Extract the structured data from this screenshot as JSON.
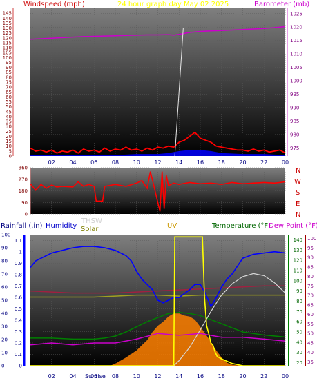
{
  "header": {
    "left_label": "Windspeed (mph)",
    "center_label": "24 hour graph day   May 02 2025",
    "right_label": "Barometer (mb)"
  },
  "direction_labels": [
    "N",
    "W",
    "S",
    "E",
    "N"
  ],
  "bottom_header": {
    "rainfall": "Rainfall (.in)",
    "humidity": "Humidity",
    "thsw": "THSW",
    "solar": "Solar",
    "uv": "UV",
    "temperature": "Temperature (°F)",
    "dewpoint": "Dew Point (°F)"
  },
  "x_ticks": [
    "02",
    "04",
    "06",
    "08",
    "10",
    "12",
    "14",
    "16",
    "18",
    "20",
    "22",
    "00"
  ],
  "sunrise_label": "Sunrise",
  "colors": {
    "wind": "#ff0000",
    "gust": "#0000ff",
    "barometer": "#cc00cc",
    "humidity": "#0000ff",
    "temperature": "#008000",
    "dewpoint": "#cc00cc",
    "uv": "#ffff00",
    "solar": "#ff8000",
    "thsw": "#ffffff",
    "rain_axis": "#0000ff",
    "plot_bg_top": "#7a7a7a",
    "plot_bg_bottom": "#000000"
  },
  "chart_data": [
    {
      "type": "line",
      "name": "wind-barometer",
      "left_axis_label": "Windspeed (mph)",
      "right_axis_label": "Barometer (mb)",
      "left_ticks": [
        "0",
        "5",
        "10",
        "15",
        "20",
        "25",
        "30",
        "35",
        "40",
        "45",
        "50",
        "55",
        "60",
        "65",
        "70",
        "75",
        "80",
        "85",
        "90",
        "95",
        "100",
        "105",
        "110",
        "115",
        "120",
        "125",
        "130",
        "135",
        "140",
        "145"
      ],
      "left_ylim": [
        0,
        150
      ],
      "right_ticks": [
        "975",
        "980",
        "985",
        "990",
        "995",
        "1000",
        "1005",
        "1010",
        "1015",
        "1020",
        "1025"
      ],
      "right_ylim": [
        972,
        1027
      ],
      "xlim": [
        0,
        24
      ],
      "series": [
        {
          "name": "Barometer",
          "axis": "right",
          "x": [
            0,
            1,
            2,
            3,
            4,
            5,
            6,
            7,
            8,
            9,
            10,
            11,
            12,
            13,
            13.5,
            14,
            15,
            16,
            17,
            18,
            19,
            20,
            21,
            22,
            23,
            24
          ],
          "values": [
            1015.5,
            1015.7,
            1015.9,
            1016.1,
            1016.3,
            1016.5,
            1016.6,
            1016.7,
            1016.8,
            1016.9,
            1017.0,
            1017.1,
            1017.1,
            1017.2,
            1017.0,
            1017.3,
            1018.0,
            1018.4,
            1018.6,
            1018.7,
            1018.9,
            1019.1,
            1019.3,
            1019.5,
            1019.8,
            1020.2
          ]
        },
        {
          "name": "Wind speed",
          "axis": "left",
          "x": [
            0,
            0.5,
            1,
            1.5,
            2,
            2.5,
            3,
            3.5,
            4,
            4.5,
            5,
            5.5,
            6,
            6.5,
            7,
            7.5,
            8,
            8.5,
            9,
            9.5,
            10,
            10.5,
            11,
            11.5,
            12,
            12.5,
            13,
            13.5,
            14,
            14.5,
            15,
            15.5,
            16,
            16.5,
            17,
            17.5,
            18,
            18.5,
            19,
            19.5,
            20,
            20.5,
            21,
            21.5,
            22,
            22.5,
            23,
            23.5,
            24
          ],
          "values": [
            8,
            5,
            6,
            4,
            6,
            3,
            5,
            4,
            6,
            3,
            7,
            5,
            6,
            4,
            8,
            5,
            7,
            6,
            9,
            6,
            7,
            5,
            8,
            6,
            9,
            8,
            10,
            9,
            14,
            16,
            20,
            24,
            18,
            16,
            14,
            10,
            9,
            8,
            7,
            6,
            6,
            5,
            7,
            5,
            6,
            4,
            5,
            6,
            3
          ]
        },
        {
          "name": "Gust",
          "axis": "left",
          "x": [
            0,
            2,
            4,
            6,
            8,
            10,
            12,
            13,
            14,
            15,
            16,
            17,
            18,
            20,
            22,
            24
          ],
          "values": [
            1,
            1,
            1,
            1,
            1,
            2,
            2,
            3,
            5,
            6,
            6,
            5,
            3,
            2,
            2,
            1
          ]
        }
      ]
    },
    {
      "type": "line",
      "name": "wind-direction",
      "axis_labels": [
        "N",
        "W",
        "S",
        "E",
        "N"
      ],
      "ticks": [
        "0",
        "90",
        "180",
        "270",
        "360"
      ],
      "ylim": [
        0,
        360
      ],
      "xlim": [
        0,
        24
      ],
      "series": [
        {
          "name": "Wind direction",
          "x": [
            0,
            0.5,
            1,
            1.5,
            2,
            2.5,
            3,
            4,
            4.5,
            5,
            5.5,
            6,
            6.2,
            6.8,
            7,
            8,
            9,
            10,
            10.5,
            11,
            11.3,
            11.6,
            12,
            12.2,
            12.4,
            12.6,
            12.8,
            13,
            13.5,
            14,
            15,
            16,
            17,
            18,
            19,
            20,
            21,
            22,
            23,
            24
          ],
          "values": [
            235,
            185,
            230,
            200,
            225,
            210,
            215,
            210,
            250,
            215,
            230,
            215,
            100,
            100,
            215,
            230,
            215,
            240,
            260,
            200,
            330,
            230,
            90,
            20,
            330,
            40,
            300,
            220,
            240,
            230,
            245,
            235,
            240,
            230,
            245,
            235,
            240,
            245,
            240,
            250
          ]
        }
      ]
    },
    {
      "type": "line",
      "name": "rain-humidity-temperature",
      "left_axis_label": "Rainfall (.in)",
      "left_ticks": [
        "0",
        "0.1",
        "0.2",
        "0.3",
        "0.4",
        "0.5",
        "0.6",
        "0.7",
        "0.8",
        "0.9",
        "1",
        "1.1"
      ],
      "left_ylim": [
        0,
        1.15
      ],
      "humidity_ticks": [
        "0",
        "10",
        "20",
        "30",
        "40",
        "50",
        "60",
        "70",
        "80",
        "90",
        "100"
      ],
      "humidity_ylim": [
        0,
        100
      ],
      "temperature_ticks": [
        "20",
        "30",
        "40",
        "50",
        "60",
        "70",
        "80",
        "90",
        "100",
        "110",
        "120",
        "130",
        "140"
      ],
      "temperature_ylim": [
        17,
        145
      ],
      "dewpoint_ticks": [
        "35",
        "40",
        "45",
        "50",
        "55",
        "60",
        "65",
        "70",
        "75",
        "80",
        "85",
        "90",
        "95",
        "100"
      ],
      "dewpoint_ylim": [
        33,
        102
      ],
      "xlim": [
        0,
        24
      ],
      "series": [
        {
          "name": "Humidity",
          "axis": "humidity",
          "x": [
            0,
            0.5,
            1,
            2,
            3,
            4,
            5,
            6,
            7,
            8,
            9,
            9.5,
            10,
            10.5,
            11,
            11.5,
            12,
            12.5,
            13,
            13.5,
            14,
            14.5,
            15,
            15.5,
            16,
            16.5,
            17,
            17.5,
            18,
            18.5,
            19,
            20,
            21,
            22,
            23,
            24
          ],
          "values": [
            75,
            80,
            82,
            86,
            88,
            90,
            91,
            91,
            90,
            88,
            84,
            80,
            72,
            66,
            62,
            58,
            50,
            48,
            50,
            52,
            52,
            55,
            58,
            62,
            62,
            55,
            45,
            52,
            60,
            66,
            70,
            82,
            85,
            86,
            87,
            86
          ]
        },
        {
          "name": "UV",
          "axis": "rain",
          "x": [
            0,
            13.5,
            13.6,
            16.2,
            16.4,
            16.6,
            16.8,
            17,
            17.2,
            17.4,
            17.6,
            18,
            18.5,
            19,
            20,
            24
          ],
          "values": [
            0,
            0,
            1.13,
            1.13,
            0.6,
            0.35,
            0.28,
            0.2,
            0.18,
            0.12,
            0.08,
            0.06,
            0.04,
            0.02,
            0,
            0
          ]
        },
        {
          "name": "Solar",
          "axis": "temperature",
          "x": [
            0,
            7.5,
            8,
            9,
            10,
            10.5,
            11,
            11.5,
            12,
            12.5,
            13,
            13.5,
            14,
            14.5,
            15,
            15.5,
            16,
            16.5,
            17,
            17.5,
            18,
            18.5,
            19,
            20,
            24
          ],
          "values": [
            17,
            17,
            19,
            25,
            32,
            37,
            42,
            50,
            56,
            60,
            65,
            68,
            68,
            66,
            65,
            62,
            55,
            48,
            40,
            32,
            25,
            20,
            18,
            17,
            17
          ]
        },
        {
          "name": "THSW",
          "axis": "temperature",
          "x": [
            0,
            13.5,
            14,
            15,
            16,
            17,
            18,
            19,
            20,
            21,
            22,
            23,
            24
          ],
          "values": [
            17,
            17,
            22,
            35,
            52,
            70,
            86,
            97,
            104,
            107,
            105,
            98,
            88
          ]
        },
        {
          "name": "Temperature",
          "axis": "temperature",
          "x": [
            0,
            2,
            4,
            6,
            7,
            8,
            9,
            10,
            11,
            12,
            13,
            14,
            15,
            16,
            17,
            18,
            19,
            20,
            22,
            24
          ],
          "values": [
            44,
            44,
            43,
            43,
            44,
            46,
            50,
            55,
            60,
            64,
            68,
            69,
            68,
            66,
            62,
            58,
            54,
            50,
            47,
            45
          ]
        },
        {
          "name": "Dew Point",
          "axis": "dewpoint",
          "x": [
            0,
            2,
            4,
            6,
            8,
            10,
            12,
            14,
            16,
            18,
            20,
            22,
            24
          ],
          "values": [
            44,
            45,
            44,
            45,
            45,
            47,
            50,
            49,
            50,
            48,
            48,
            47,
            46
          ]
        },
        {
          "name": "Top band",
          "axis": "temperature",
          "x": [
            0,
            2,
            4,
            6,
            8,
            10,
            12,
            14,
            16,
            18,
            20,
            22,
            24
          ],
          "values": [
            90,
            89,
            88,
            88,
            88,
            89,
            90,
            91,
            92,
            93,
            94,
            95,
            95
          ]
        },
        {
          "name": "Mid band",
          "axis": "temperature",
          "x": [
            0,
            2,
            4,
            6,
            8,
            10,
            12,
            14,
            16,
            18,
            20,
            22,
            24
          ],
          "values": [
            84,
            84,
            84,
            84,
            85,
            86,
            86,
            85,
            86,
            86,
            86,
            86,
            86
          ]
        }
      ]
    }
  ]
}
